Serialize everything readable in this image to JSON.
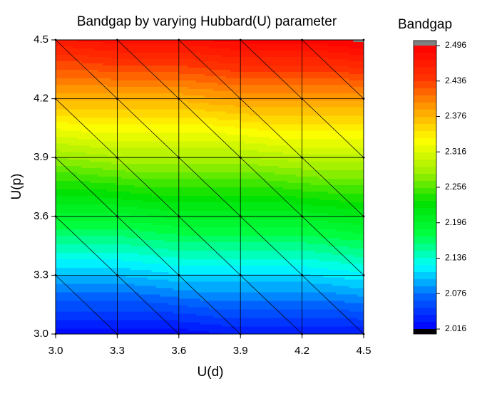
{
  "chart_data": {
    "type": "contour",
    "title": "Bandgap by varying Hubbard(U) parameter",
    "x_label": "U(d)",
    "y_label": "U(p)",
    "colorbar_title": "Bandgap",
    "x": [
      3.0,
      3.3,
      3.6,
      3.9,
      4.2,
      4.5
    ],
    "y": [
      3.0,
      3.3,
      3.6,
      3.9,
      4.2,
      4.5
    ],
    "z": [
      [
        2.02,
        2.02,
        2.02,
        2.03,
        2.03,
        2.03
      ],
      [
        2.1,
        2.1,
        2.11,
        2.11,
        2.11,
        2.12
      ],
      [
        2.19,
        2.19,
        2.2,
        2.2,
        2.2,
        2.21
      ],
      [
        2.28,
        2.29,
        2.29,
        2.29,
        2.3,
        2.3
      ],
      [
        2.38,
        2.38,
        2.38,
        2.39,
        2.39,
        2.39
      ],
      [
        2.47,
        2.48,
        2.48,
        2.49,
        2.49,
        2.5
      ]
    ],
    "xlim": [
      3.0,
      4.5
    ],
    "ylim": [
      3.0,
      4.5
    ],
    "xticks": [
      {
        "value": 3,
        "label": "3.0"
      },
      3.3,
      3.6,
      3.9,
      4.2,
      4.5
    ],
    "yticks": [
      {
        "value": 3,
        "label": "3.0"
      },
      3.3,
      3.6,
      3.9,
      4.2,
      4.5
    ],
    "zlim": [
      2.016,
      2.496
    ],
    "zticks": [
      2.016,
      2.076,
      2.136,
      2.196,
      2.256,
      2.316,
      2.376,
      2.436,
      2.496
    ],
    "colormap": [
      "#0000ff",
      "#0060ff",
      "#00ffff",
      "#00ff40",
      "#00e000",
      "#a0f000",
      "#ffff00",
      "#ffa000",
      "#ff3000",
      "#ff0000"
    ],
    "under_color": "#000000",
    "over_color": "#808080",
    "grid": true
  }
}
